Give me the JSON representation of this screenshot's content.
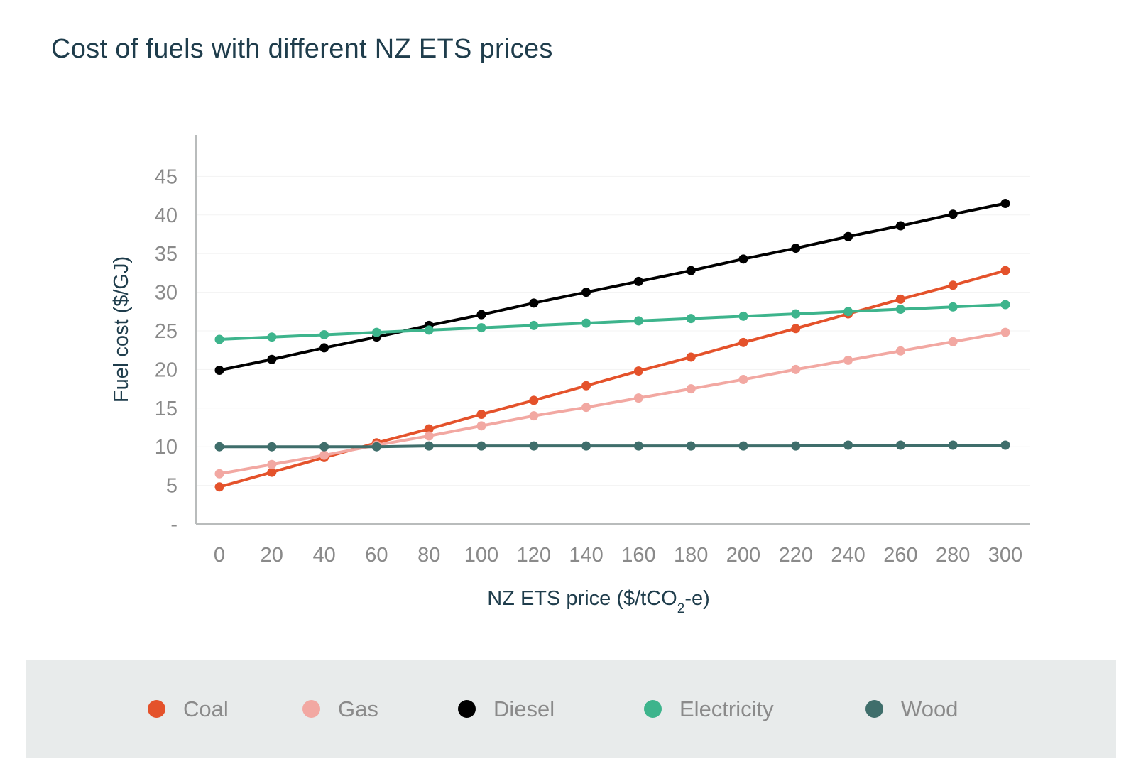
{
  "chart_data": {
    "type": "line",
    "title": "Cost of fuels with different NZ ETS prices",
    "xlabel_main": "NZ ETS price ($/tCO",
    "xlabel_sub": "2",
    "xlabel_tail": "-e)",
    "ylabel": "Fuel cost ($/GJ)",
    "x": [
      0,
      20,
      40,
      60,
      80,
      100,
      120,
      140,
      160,
      180,
      200,
      220,
      240,
      260,
      280,
      300
    ],
    "x_tick_labels": [
      "0",
      "20",
      "40",
      "60",
      "80",
      "100",
      "120",
      "140",
      "160",
      "180",
      "200",
      "220",
      "240",
      "260",
      "280",
      "300"
    ],
    "y_tick_labels": [
      "-",
      "5",
      "10",
      "15",
      "20",
      "25",
      "30",
      "35",
      "40",
      "45"
    ],
    "y_ticks": [
      0,
      5,
      10,
      15,
      20,
      25,
      30,
      35,
      40,
      45
    ],
    "ylim": [
      0,
      50
    ],
    "legend_position": "bottom",
    "series": [
      {
        "name": "Coal",
        "color": "#e4522b",
        "values": [
          4.8,
          6.7,
          8.6,
          10.5,
          12.3,
          14.2,
          16.0,
          17.9,
          19.8,
          21.6,
          23.5,
          25.3,
          27.2,
          29.1,
          30.9,
          32.8
        ]
      },
      {
        "name": "Gas",
        "color": "#f2a8a2",
        "values": [
          6.5,
          7.7,
          8.9,
          10.2,
          11.4,
          12.7,
          14.0,
          15.1,
          16.3,
          17.5,
          18.7,
          20.0,
          21.2,
          22.4,
          23.6,
          24.8
        ]
      },
      {
        "name": "Diesel",
        "color": "#000000",
        "values": [
          19.9,
          21.3,
          22.8,
          24.2,
          25.7,
          27.1,
          28.6,
          30.0,
          31.4,
          32.8,
          34.3,
          35.7,
          37.2,
          38.6,
          40.1,
          41.5
        ]
      },
      {
        "name": "Electricity",
        "color": "#3db48c",
        "values": [
          23.9,
          24.2,
          24.5,
          24.8,
          25.1,
          25.4,
          25.7,
          26.0,
          26.3,
          26.6,
          26.9,
          27.2,
          27.5,
          27.8,
          28.1,
          28.4
        ]
      },
      {
        "name": "Wood",
        "color": "#3f6e6b",
        "values": [
          10.0,
          10.0,
          10.0,
          10.0,
          10.1,
          10.1,
          10.1,
          10.1,
          10.1,
          10.1,
          10.1,
          10.1,
          10.2,
          10.2,
          10.2,
          10.2
        ]
      }
    ]
  }
}
